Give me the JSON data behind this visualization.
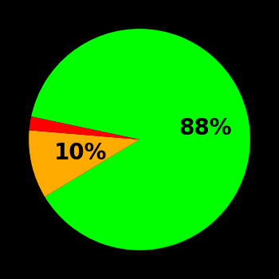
{
  "slices": [
    88,
    10,
    2
  ],
  "colors": [
    "#00ff00",
    "#ffaa00",
    "#ff0000"
  ],
  "labels": [
    "88%",
    "10%",
    ""
  ],
  "label_radii": [
    0.6,
    0.55,
    0.6
  ],
  "background_color": "#000000",
  "text_color": "#000000",
  "font_size": 20,
  "font_weight": "bold",
  "startangle": 168,
  "counterclock": false
}
